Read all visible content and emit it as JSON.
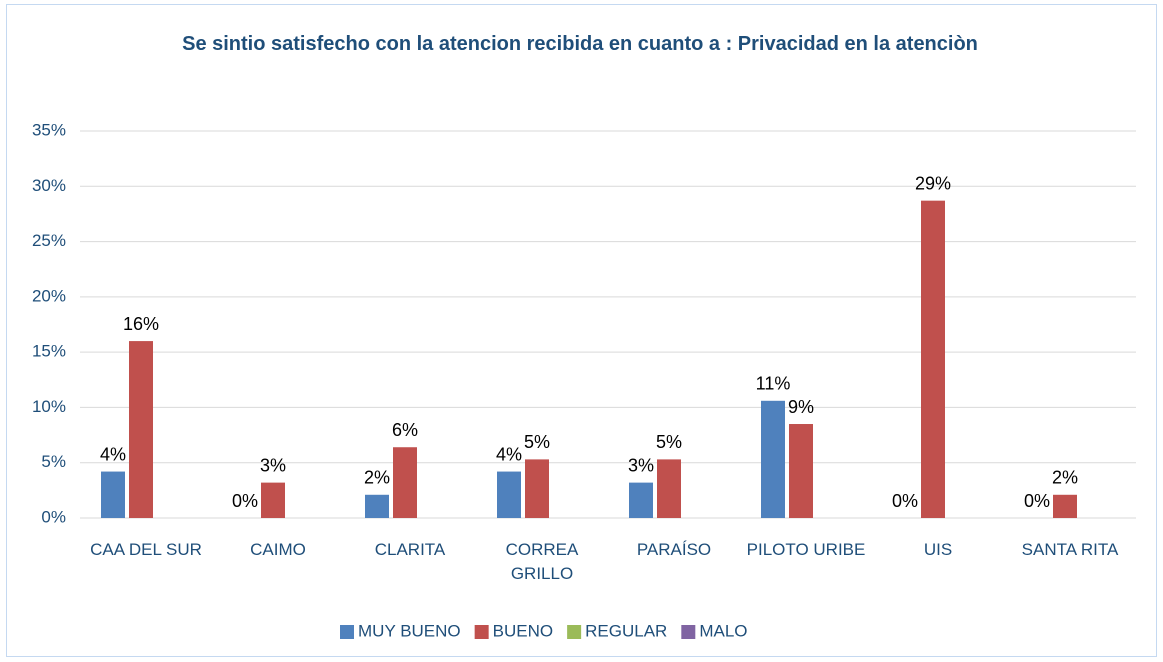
{
  "chart_data": {
    "type": "bar",
    "title": "Se sintio satisfecho con la atencion recibida en cuanto a : Privacidad en la atenciòn",
    "categories": [
      "CAA DEL SUR",
      "CAIMO",
      "CLARITA",
      "CORREA GRILLO",
      "PARAÍSO",
      "PILOTO URIBE",
      "UIS",
      "SANTA RITA"
    ],
    "series": [
      {
        "name": "MUY BUENO",
        "color": "#4f81bd",
        "values": [
          4.2,
          0,
          2.1,
          4.2,
          3.2,
          10.6,
          0,
          0
        ],
        "value_labels": [
          "4%",
          "0%",
          "2%",
          "4%",
          "3%",
          "11%",
          "0%",
          "0%"
        ]
      },
      {
        "name": "BUENO",
        "color": "#c0504d",
        "values": [
          16,
          3.2,
          6.4,
          5.3,
          5.3,
          8.5,
          28.7,
          2.1
        ],
        "value_labels": [
          "16%",
          "3%",
          "6%",
          "5%",
          "5%",
          "9%",
          "29%",
          "2%"
        ]
      },
      {
        "name": "REGULAR",
        "color": "#9bbb59",
        "values": [
          null,
          null,
          null,
          null,
          null,
          null,
          null,
          null
        ]
      },
      {
        "name": "MALO",
        "color": "#8064a2",
        "values": [
          null,
          null,
          null,
          null,
          null,
          null,
          null,
          null
        ]
      }
    ],
    "ylim": [
      0,
      35
    ],
    "yticks": [
      {
        "value": 0,
        "label": "0%"
      },
      {
        "value": 5,
        "label": "5%"
      },
      {
        "value": 10,
        "label": "10%"
      },
      {
        "value": 15,
        "label": "15%"
      },
      {
        "value": 20,
        "label": "20%"
      },
      {
        "value": 25,
        "label": "25%"
      },
      {
        "value": 30,
        "label": "30%"
      },
      {
        "value": 35,
        "label": "35%"
      }
    ],
    "grid": true,
    "legend": "bottom"
  }
}
